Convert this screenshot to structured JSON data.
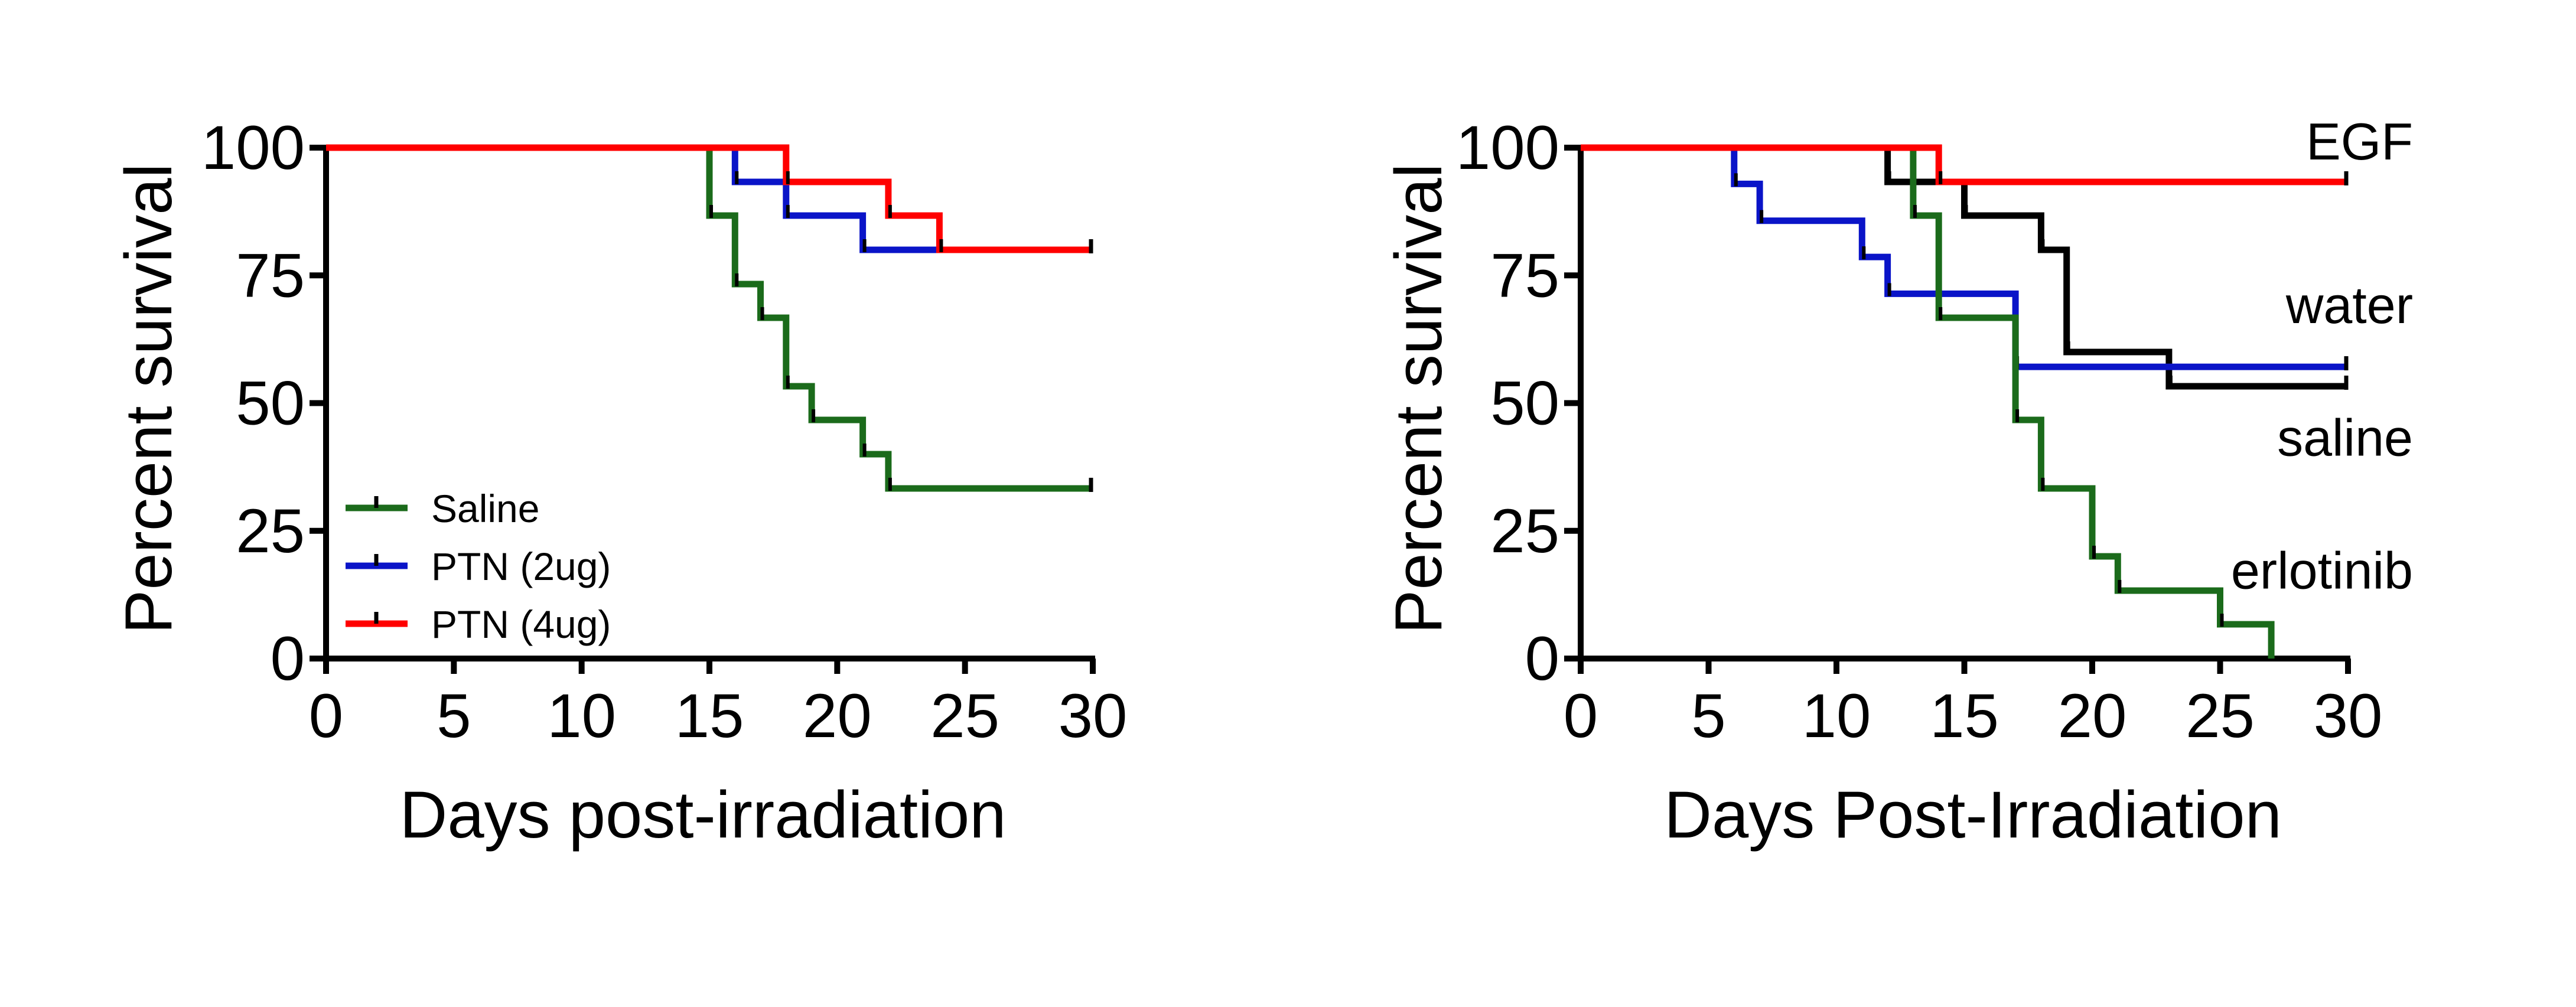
{
  "chart_data": [
    {
      "type": "line",
      "step": true,
      "xlabel": "Days post-irradiation",
      "ylabel": "Percent survival",
      "xlim": [
        0,
        30
      ],
      "ylim": [
        0,
        100
      ],
      "xticks": [
        "0",
        "5",
        "10",
        "15",
        "20",
        "25",
        "30"
      ],
      "yticks": [
        "0",
        "25",
        "50",
        "75",
        "100"
      ],
      "grid": false,
      "legend_position": "bottom-left",
      "series": [
        {
          "name": "Saline",
          "color": "#1b6b1b",
          "points": [
            [
              0,
              100
            ],
            [
              15,
              100
            ],
            [
              15,
              86.7
            ],
            [
              16,
              86.7
            ],
            [
              16,
              73.3
            ],
            [
              17,
              73.3
            ],
            [
              17,
              66.7
            ],
            [
              18,
              66.7
            ],
            [
              18,
              53.3
            ],
            [
              19,
              53.3
            ],
            [
              19,
              46.7
            ],
            [
              21,
              46.7
            ],
            [
              21,
              40
            ],
            [
              22,
              40
            ],
            [
              22,
              33.3
            ],
            [
              30,
              33.3
            ]
          ]
        },
        {
          "name": "PTN (2ug)",
          "color": "#0a14c8",
          "points": [
            [
              0,
              100
            ],
            [
              16,
              100
            ],
            [
              16,
              93.3
            ],
            [
              18,
              93.3
            ],
            [
              18,
              86.7
            ],
            [
              21,
              86.7
            ],
            [
              21,
              80
            ],
            [
              30,
              80
            ]
          ]
        },
        {
          "name": "PTN (4ug)",
          "color": "#ff0000",
          "points": [
            [
              0,
              100
            ],
            [
              18,
              100
            ],
            [
              18,
              93.3
            ],
            [
              22,
              93.3
            ],
            [
              22,
              86.7
            ],
            [
              24,
              86.7
            ],
            [
              24,
              80
            ],
            [
              30,
              80
            ]
          ]
        }
      ]
    },
    {
      "type": "line",
      "step": true,
      "xlabel": "Days Post-Irradiation",
      "ylabel": "Percent survival",
      "xlim": [
        0,
        30
      ],
      "ylim": [
        0,
        100
      ],
      "xticks": [
        "0",
        "5",
        "10",
        "15",
        "20",
        "25",
        "30"
      ],
      "yticks": [
        "0",
        "25",
        "50",
        "75",
        "100"
      ],
      "grid": false,
      "series": [
        {
          "name": "saline",
          "color": "#000000",
          "label_x": 30,
          "label_y": 42,
          "points": [
            [
              0,
              100
            ],
            [
              12,
              100
            ],
            [
              12,
              93.3
            ],
            [
              15,
              93.3
            ],
            [
              15,
              86.7
            ],
            [
              18,
              86.7
            ],
            [
              18,
              80
            ],
            [
              19,
              80
            ],
            [
              19,
              60
            ],
            [
              23,
              60
            ],
            [
              23,
              53.3
            ],
            [
              30,
              53.3
            ]
          ]
        },
        {
          "name": "water",
          "color": "#0a14c8",
          "label_x": 30,
          "label_y": 68,
          "points": [
            [
              0,
              100
            ],
            [
              6,
              100
            ],
            [
              6,
              92.9
            ],
            [
              7,
              92.9
            ],
            [
              7,
              85.7
            ],
            [
              11,
              85.7
            ],
            [
              11,
              78.6
            ],
            [
              12,
              78.6
            ],
            [
              12,
              71.4
            ],
            [
              17,
              71.4
            ],
            [
              17,
              57.1
            ],
            [
              30,
              57.1
            ]
          ]
        },
        {
          "name": "erlotinib",
          "color": "#1b6b1b",
          "label_x": 30,
          "label_y": 16,
          "points": [
            [
              0,
              100
            ],
            [
              13,
              100
            ],
            [
              13,
              86.7
            ],
            [
              14,
              86.7
            ],
            [
              14,
              66.7
            ],
            [
              17,
              66.7
            ],
            [
              17,
              46.7
            ],
            [
              18,
              46.7
            ],
            [
              18,
              33.3
            ],
            [
              20,
              33.3
            ],
            [
              20,
              20
            ],
            [
              21,
              20
            ],
            [
              21,
              13.3
            ],
            [
              25,
              13.3
            ],
            [
              25,
              6.7
            ],
            [
              27,
              6.7
            ],
            [
              27,
              0
            ]
          ]
        },
        {
          "name": "EGF",
          "color": "#ff0000",
          "label_x": 30,
          "label_y": 100,
          "points": [
            [
              0,
              100
            ],
            [
              14,
              100
            ],
            [
              14,
              93.3
            ],
            [
              30,
              93.3
            ]
          ]
        }
      ]
    }
  ]
}
